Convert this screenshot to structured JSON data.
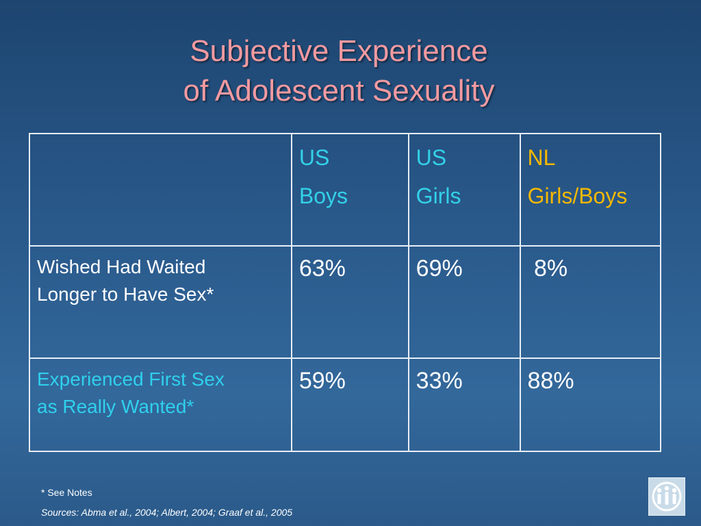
{
  "title": {
    "line1": "Subjective Experience",
    "line2": "of Adolescent Sexuality"
  },
  "table": {
    "headers": [
      {
        "line1": "",
        "line2": ""
      },
      {
        "line1": "US",
        "line2": "Boys"
      },
      {
        "line1": "US",
        "line2": "Girls"
      },
      {
        "line1": "NL",
        "line2": "Girls/Boys"
      }
    ],
    "rows": [
      {
        "label_line1": "Wished Had Waited",
        "label_line2": "Longer to Have Sex*",
        "values": [
          "63%",
          "69%",
          " 8%"
        ]
      },
      {
        "label_line1": "Experienced First Sex",
        "label_line2": "as Really Wanted*",
        "values": [
          "59%",
          "33%",
          "88%"
        ]
      }
    ]
  },
  "footer": {
    "note": "* See Notes",
    "sources": "Sources: Abma et al., 2004; Albert, 2004; Graaf et al., 2005"
  },
  "colors": {
    "title": "#f39aa0",
    "us_header": "#33d1e8",
    "nl_header": "#f5b800",
    "background": "#2a5a8c"
  },
  "icons": {
    "logo": "family-logo-icon"
  }
}
